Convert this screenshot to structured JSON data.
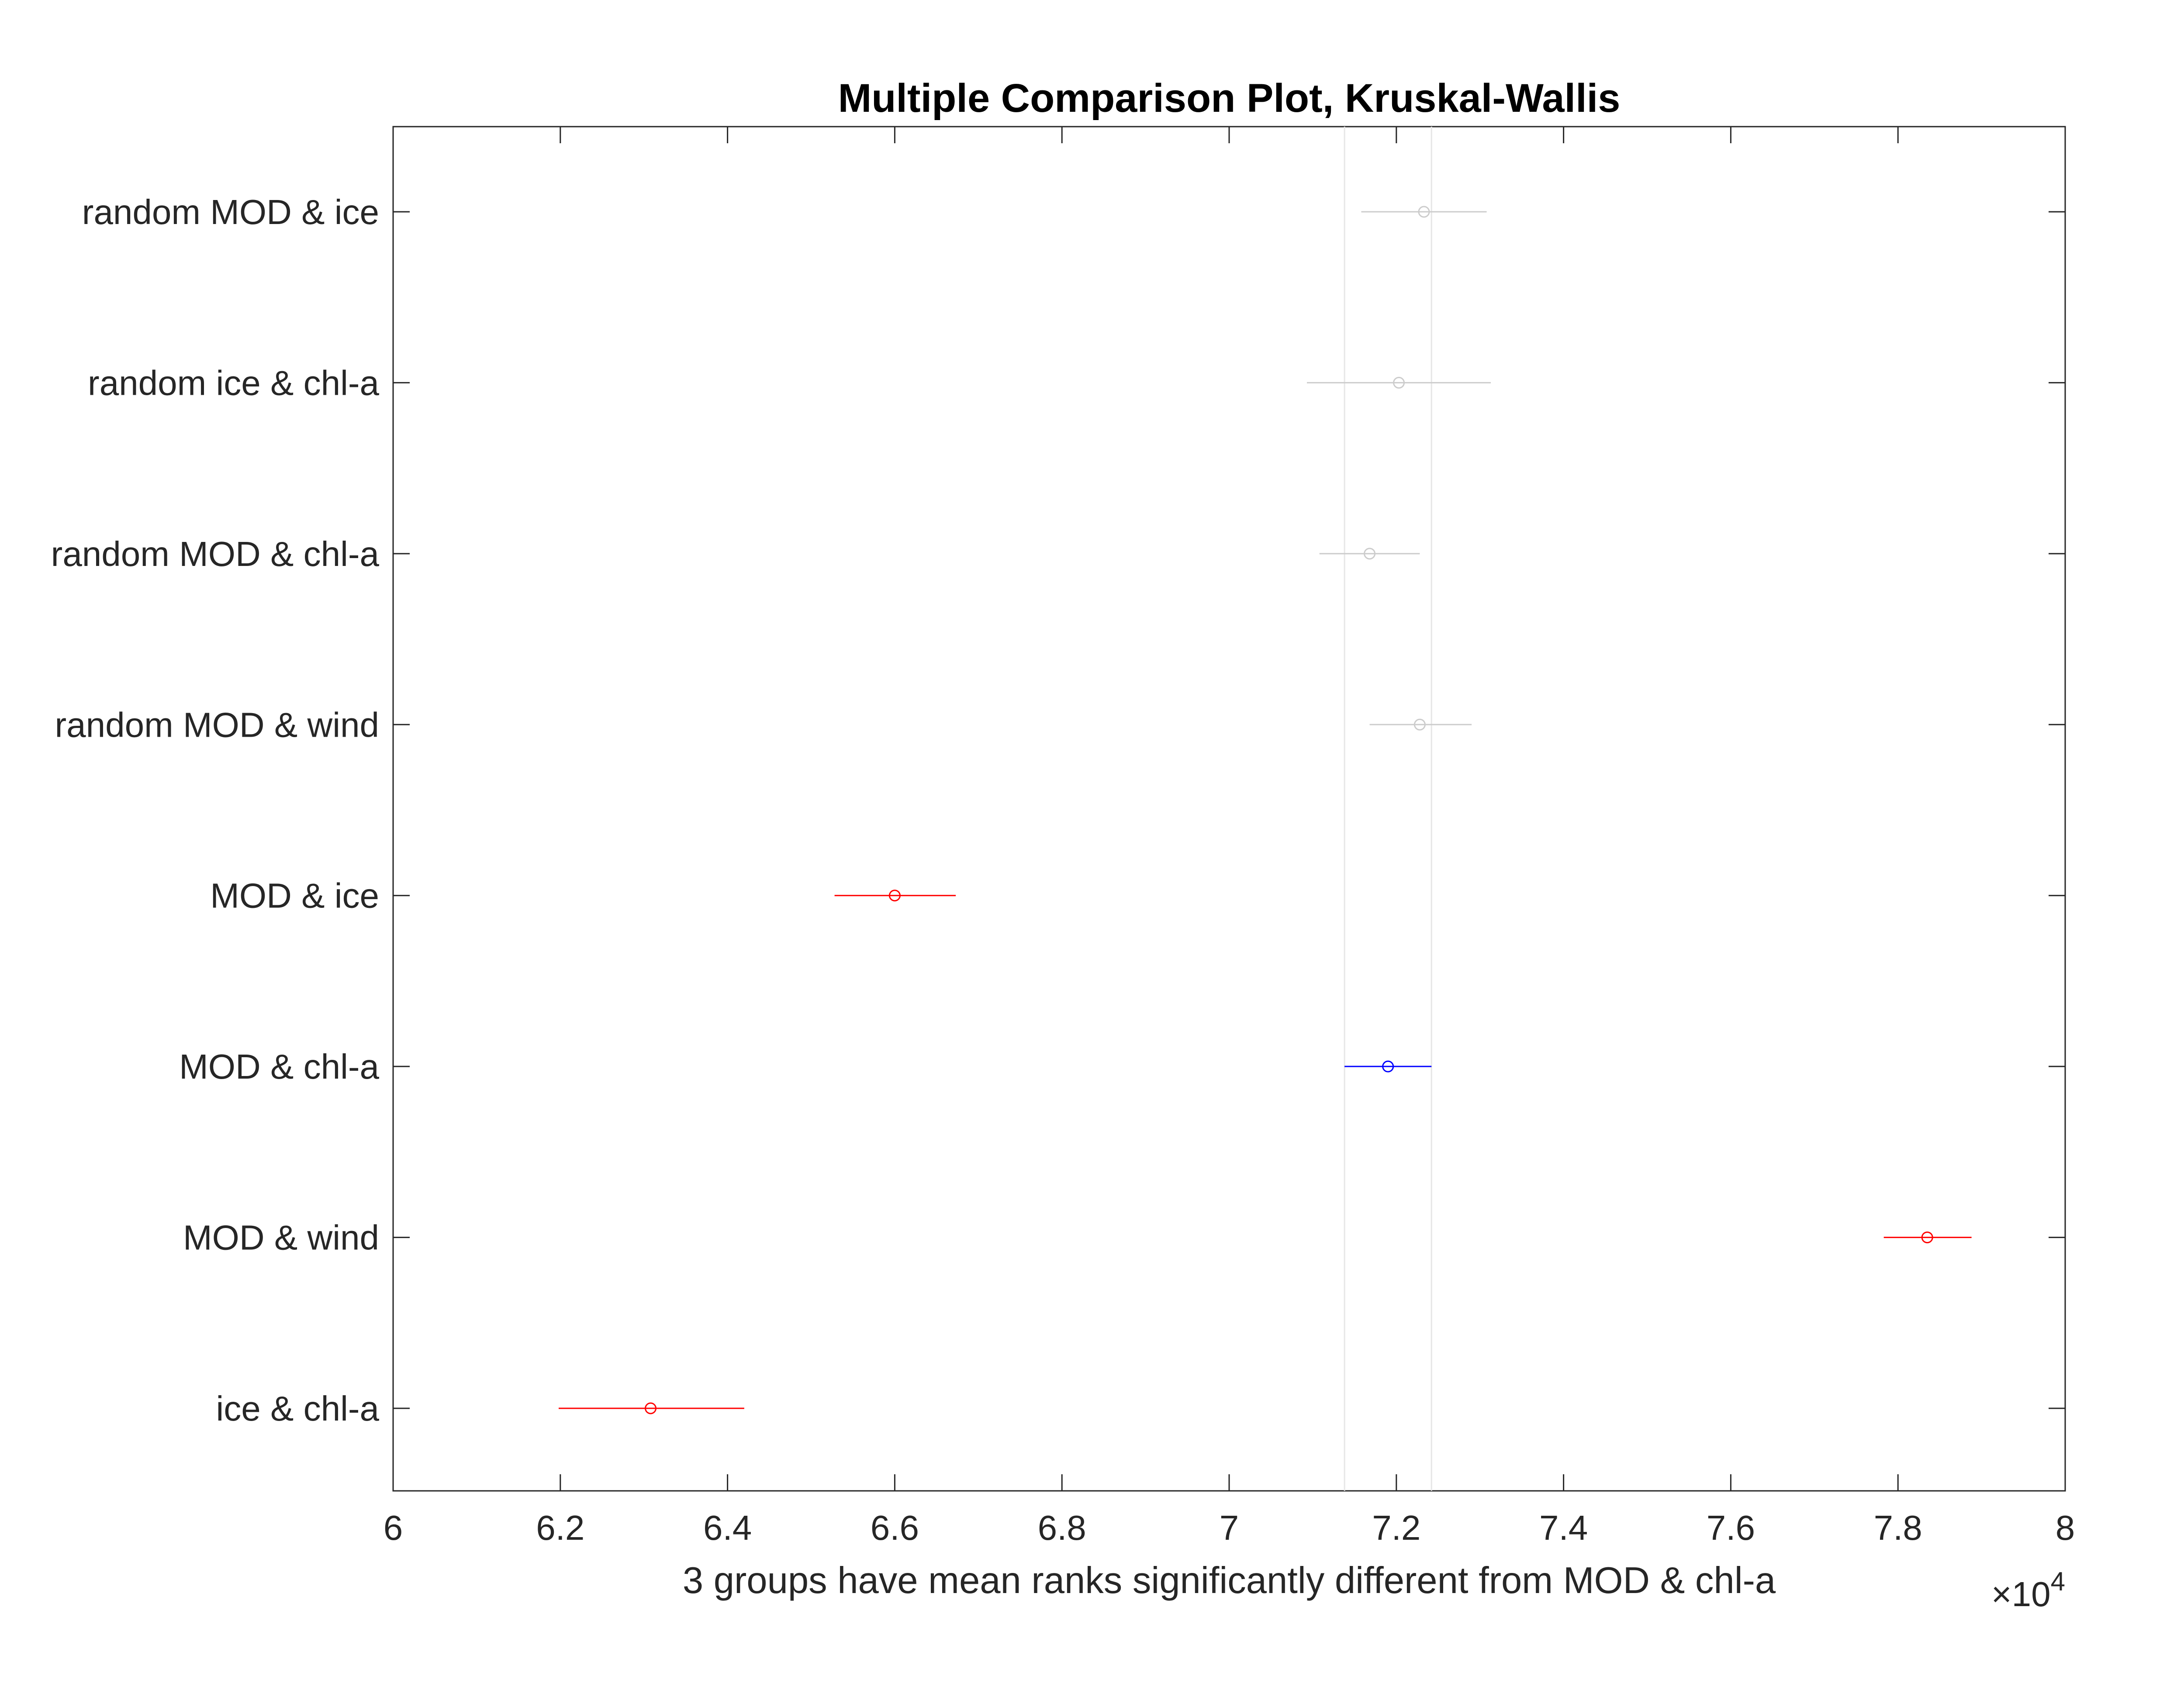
{
  "chart_data": {
    "type": "scatter",
    "title": "Multiple Comparison Plot, Kruskal-Wallis",
    "xlabel": "3 groups have mean ranks significantly different from MOD & chl-a",
    "x_exponent_base": "×10",
    "x_exponent_power": "4",
    "xlim": [
      6,
      8
    ],
    "x_ticks": [
      "6",
      "6.2",
      "6.4",
      "6.6",
      "6.8",
      "7",
      "7.2",
      "7.4",
      "7.6",
      "7.8",
      "8"
    ],
    "x_tick_values": [
      6,
      6.2,
      6.4,
      6.6,
      6.8,
      7,
      7.2,
      7.4,
      7.6,
      7.8,
      8
    ],
    "reference_interval": [
      7.138,
      7.242
    ],
    "groups": [
      {
        "label": "random MOD & ice",
        "mean": 7.233,
        "low": 7.158,
        "high": 7.308,
        "color": "#cccccc"
      },
      {
        "label": "random ice & chl-a",
        "mean": 7.203,
        "low": 7.093,
        "high": 7.313,
        "color": "#cccccc"
      },
      {
        "label": "random MOD & chl-a",
        "mean": 7.168,
        "low": 7.108,
        "high": 7.228,
        "color": "#cccccc"
      },
      {
        "label": "random MOD & wind",
        "mean": 7.228,
        "low": 7.168,
        "high": 7.29,
        "color": "#cccccc"
      },
      {
        "label": "MOD & ice",
        "mean": 6.6,
        "low": 6.528,
        "high": 6.673,
        "color": "#ff0000"
      },
      {
        "label": "MOD & chl-a",
        "mean": 7.19,
        "low": 7.138,
        "high": 7.242,
        "color": "#0000ff"
      },
      {
        "label": "MOD & wind",
        "mean": 7.835,
        "low": 7.783,
        "high": 7.888,
        "color": "#ff0000"
      },
      {
        "label": "ice & chl-a",
        "mean": 6.308,
        "low": 6.198,
        "high": 6.42,
        "color": "#ff0000"
      }
    ],
    "grid": false,
    "legend": "none"
  }
}
